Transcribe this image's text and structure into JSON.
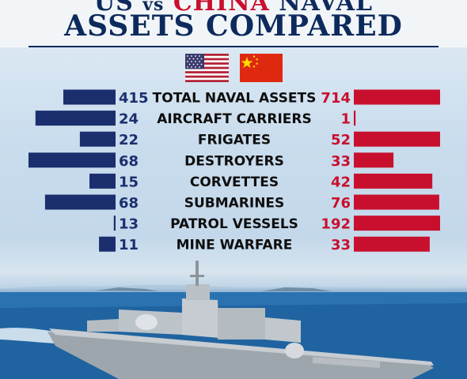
{
  "header": {
    "title_us": "US",
    "title_vs": "vs",
    "title_china": "CHINA",
    "title_naval": "NAVAL",
    "title_line2": "ASSETS COMPARED"
  },
  "flags": [
    {
      "country": "US",
      "icon": "us-flag-icon"
    },
    {
      "country": "China",
      "icon": "china-flag-icon"
    }
  ],
  "colors": {
    "us_bar": "#1b2f6e",
    "china_bar": "#c8102e",
    "title_navy": "#0d2a5c",
    "title_red": "#c8102e"
  },
  "chart_data": {
    "type": "bar",
    "categories": [
      "TOTAL NAVAL ASSETS",
      "AIRCRAFT CARRIERS",
      "FRIGATES",
      "DESTROYERS",
      "CORVETTES",
      "SUBMARINES",
      "PATROL VESSELS",
      "MINE WARFARE"
    ],
    "series": [
      {
        "name": "US",
        "values": [
          415,
          24,
          22,
          68,
          15,
          68,
          13,
          11
        ]
      },
      {
        "name": "CHINA",
        "values": [
          714,
          1,
          52,
          33,
          42,
          76,
          192,
          33
        ]
      }
    ],
    "value_labels": {
      "US": [
        "415",
        "24",
        "22",
        "68",
        "15",
        "68",
        "13",
        "11"
      ],
      "CHINA": [
        "714",
        "1",
        "52",
        "33",
        "42",
        "76",
        "192",
        "33"
      ]
    },
    "bar_lengths_relative": {
      "US": [
        0.6,
        0.92,
        0.41,
        1.0,
        0.3,
        0.81,
        0.02,
        0.19
      ],
      "CHINA": [
        1.0,
        0.02,
        1.0,
        0.46,
        0.91,
        0.99,
        1.0,
        0.88
      ]
    }
  }
}
